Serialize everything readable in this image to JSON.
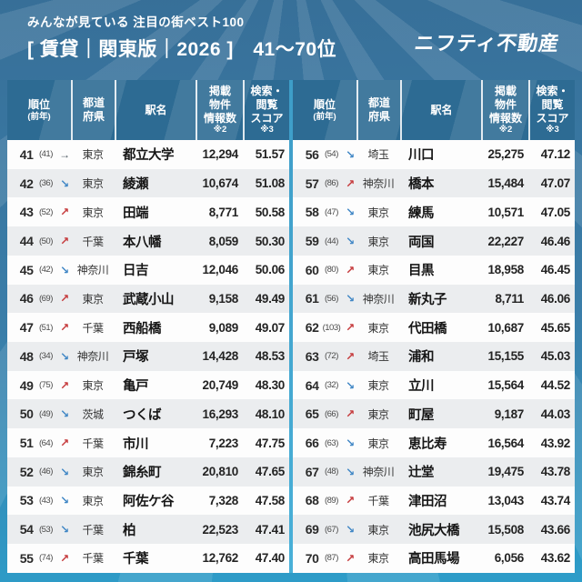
{
  "banner": {
    "subtitle": "みんなが見ている 注目の街ベスト100",
    "title": "[ 賃貸｜関東版｜2026 ]　41〜70位",
    "logo": "ニフティ不動産"
  },
  "header_columns": [
    {
      "lines": [
        "順位"
      ],
      "small": "(前年)"
    },
    {
      "lines": [
        "都道",
        "府県"
      ],
      "small": ""
    },
    {
      "lines": [
        "駅名"
      ],
      "small": ""
    },
    {
      "lines": [
        "掲載",
        "物件",
        "情報数"
      ],
      "small": "※2"
    },
    {
      "lines": [
        "検索・",
        "閲覧",
        "スコア"
      ],
      "small": "※3"
    }
  ],
  "trend_colors": {
    "up": "#c5383a",
    "down": "#3f86c5",
    "same": "#4e5a63"
  },
  "trend_glyphs": {
    "up": "↗",
    "down": "↘",
    "same": "→"
  },
  "chart_data": {
    "type": "table",
    "title": "みんなが見ている 注目の街ベスト100 [賃貸｜関東版｜2026] 41〜70位",
    "columns": [
      "順位",
      "(前年)",
      "傾向",
      "都道府県",
      "駅名",
      "掲載物件情報数※2",
      "検索・閲覧スコア※3"
    ],
    "rows": [
      {
        "rank": "41",
        "prev": "(41)",
        "trend": "same",
        "pref": "東京",
        "station": "都立大学",
        "listings": "12,294",
        "score": "51.57"
      },
      {
        "rank": "42",
        "prev": "(36)",
        "trend": "down",
        "pref": "東京",
        "station": "綾瀬",
        "listings": "10,674",
        "score": "51.08"
      },
      {
        "rank": "43",
        "prev": "(52)",
        "trend": "up",
        "pref": "東京",
        "station": "田端",
        "listings": "8,771",
        "score": "50.58"
      },
      {
        "rank": "44",
        "prev": "(50)",
        "trend": "up",
        "pref": "千葉",
        "station": "本八幡",
        "listings": "8,059",
        "score": "50.30"
      },
      {
        "rank": "45",
        "prev": "(42)",
        "trend": "down",
        "pref": "神奈川",
        "station": "日吉",
        "listings": "12,046",
        "score": "50.06"
      },
      {
        "rank": "46",
        "prev": "(69)",
        "trend": "up",
        "pref": "東京",
        "station": "武蔵小山",
        "listings": "9,158",
        "score": "49.49"
      },
      {
        "rank": "47",
        "prev": "(51)",
        "trend": "up",
        "pref": "千葉",
        "station": "西船橋",
        "listings": "9,089",
        "score": "49.07"
      },
      {
        "rank": "48",
        "prev": "(34)",
        "trend": "down",
        "pref": "神奈川",
        "station": "戸塚",
        "listings": "14,428",
        "score": "48.53"
      },
      {
        "rank": "49",
        "prev": "(75)",
        "trend": "up",
        "pref": "東京",
        "station": "亀戸",
        "listings": "20,749",
        "score": "48.30"
      },
      {
        "rank": "50",
        "prev": "(49)",
        "trend": "down",
        "pref": "茨城",
        "station": "つくば",
        "listings": "16,293",
        "score": "48.10"
      },
      {
        "rank": "51",
        "prev": "(64)",
        "trend": "up",
        "pref": "千葉",
        "station": "市川",
        "listings": "7,223",
        "score": "47.75"
      },
      {
        "rank": "52",
        "prev": "(46)",
        "trend": "down",
        "pref": "東京",
        "station": "錦糸町",
        "listings": "20,810",
        "score": "47.65"
      },
      {
        "rank": "53",
        "prev": "(43)",
        "trend": "down",
        "pref": "東京",
        "station": "阿佐ケ谷",
        "listings": "7,328",
        "score": "47.58"
      },
      {
        "rank": "54",
        "prev": "(53)",
        "trend": "down",
        "pref": "千葉",
        "station": "柏",
        "listings": "22,523",
        "score": "47.41"
      },
      {
        "rank": "55",
        "prev": "(74)",
        "trend": "up",
        "pref": "千葉",
        "station": "千葉",
        "listings": "12,762",
        "score": "47.40"
      },
      {
        "rank": "56",
        "prev": "(54)",
        "trend": "down",
        "pref": "埼玉",
        "station": "川口",
        "listings": "25,275",
        "score": "47.12"
      },
      {
        "rank": "57",
        "prev": "(86)",
        "trend": "up",
        "pref": "神奈川",
        "station": "橋本",
        "listings": "15,484",
        "score": "47.07"
      },
      {
        "rank": "58",
        "prev": "(47)",
        "trend": "down",
        "pref": "東京",
        "station": "練馬",
        "listings": "10,571",
        "score": "47.05"
      },
      {
        "rank": "59",
        "prev": "(44)",
        "trend": "down",
        "pref": "東京",
        "station": "両国",
        "listings": "22,227",
        "score": "46.46"
      },
      {
        "rank": "60",
        "prev": "(80)",
        "trend": "up",
        "pref": "東京",
        "station": "目黒",
        "listings": "18,958",
        "score": "46.45"
      },
      {
        "rank": "61",
        "prev": "(56)",
        "trend": "down",
        "pref": "神奈川",
        "station": "新丸子",
        "listings": "8,711",
        "score": "46.06"
      },
      {
        "rank": "62",
        "prev": "(103)",
        "trend": "up",
        "pref": "東京",
        "station": "代田橋",
        "listings": "10,687",
        "score": "45.65"
      },
      {
        "rank": "63",
        "prev": "(72)",
        "trend": "up",
        "pref": "埼玉",
        "station": "浦和",
        "listings": "15,155",
        "score": "45.03"
      },
      {
        "rank": "64",
        "prev": "(32)",
        "trend": "down",
        "pref": "東京",
        "station": "立川",
        "listings": "15,564",
        "score": "44.52"
      },
      {
        "rank": "65",
        "prev": "(66)",
        "trend": "up",
        "pref": "東京",
        "station": "町屋",
        "listings": "9,187",
        "score": "44.03"
      },
      {
        "rank": "66",
        "prev": "(63)",
        "trend": "down",
        "pref": "東京",
        "station": "恵比寿",
        "listings": "16,564",
        "score": "43.92"
      },
      {
        "rank": "67",
        "prev": "(48)",
        "trend": "down",
        "pref": "神奈川",
        "station": "辻堂",
        "listings": "19,475",
        "score": "43.78"
      },
      {
        "rank": "68",
        "prev": "(89)",
        "trend": "up",
        "pref": "千葉",
        "station": "津田沼",
        "listings": "13,043",
        "score": "43.74"
      },
      {
        "rank": "69",
        "prev": "(67)",
        "trend": "down",
        "pref": "東京",
        "station": "池尻大橋",
        "listings": "15,508",
        "score": "43.66"
      },
      {
        "rank": "70",
        "prev": "(87)",
        "trend": "up",
        "pref": "東京",
        "station": "高田馬場",
        "listings": "6,056",
        "score": "43.62"
      }
    ]
  }
}
